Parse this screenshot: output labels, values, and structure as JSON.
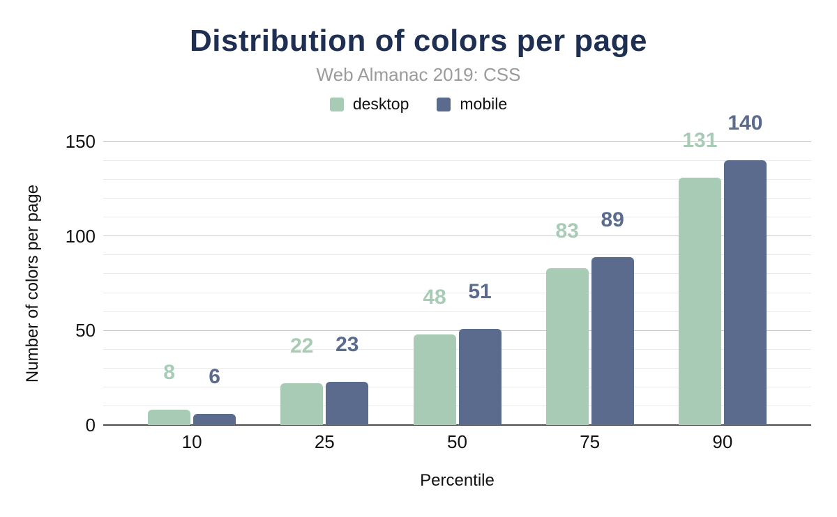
{
  "header": {
    "title": "Distribution of colors per page",
    "subtitle": "Web Almanac 2019: CSS"
  },
  "colors": {
    "title_text": "#1e2f52",
    "subtitle_text": "#9b9b9b",
    "desktop": "#a8cbb6",
    "mobile": "#5b6b8d",
    "axis_line": "#4d4d4d",
    "grid_minor": "#e9e9e9",
    "grid_major": "#c9c9c9"
  },
  "chart_data": {
    "type": "bar",
    "title": "Distribution of colors per page",
    "subtitle": "Web Almanac 2019: CSS",
    "categories": [
      "10",
      "25",
      "50",
      "75",
      "90"
    ],
    "series": [
      {
        "name": "desktop",
        "color": "#a8cbb6",
        "values": [
          8,
          22,
          48,
          83,
          131
        ]
      },
      {
        "name": "mobile",
        "color": "#5b6b8d",
        "values": [
          6,
          23,
          51,
          89,
          140
        ]
      }
    ],
    "xlabel": "Percentile",
    "ylabel": "Number of colors per page",
    "ylim": [
      0,
      150
    ],
    "yticks": [
      0,
      50,
      100,
      150
    ],
    "grid_minor_step": 10,
    "grid_major_step": 50,
    "grid": true,
    "legend_position": "top",
    "data_labels": true
  }
}
